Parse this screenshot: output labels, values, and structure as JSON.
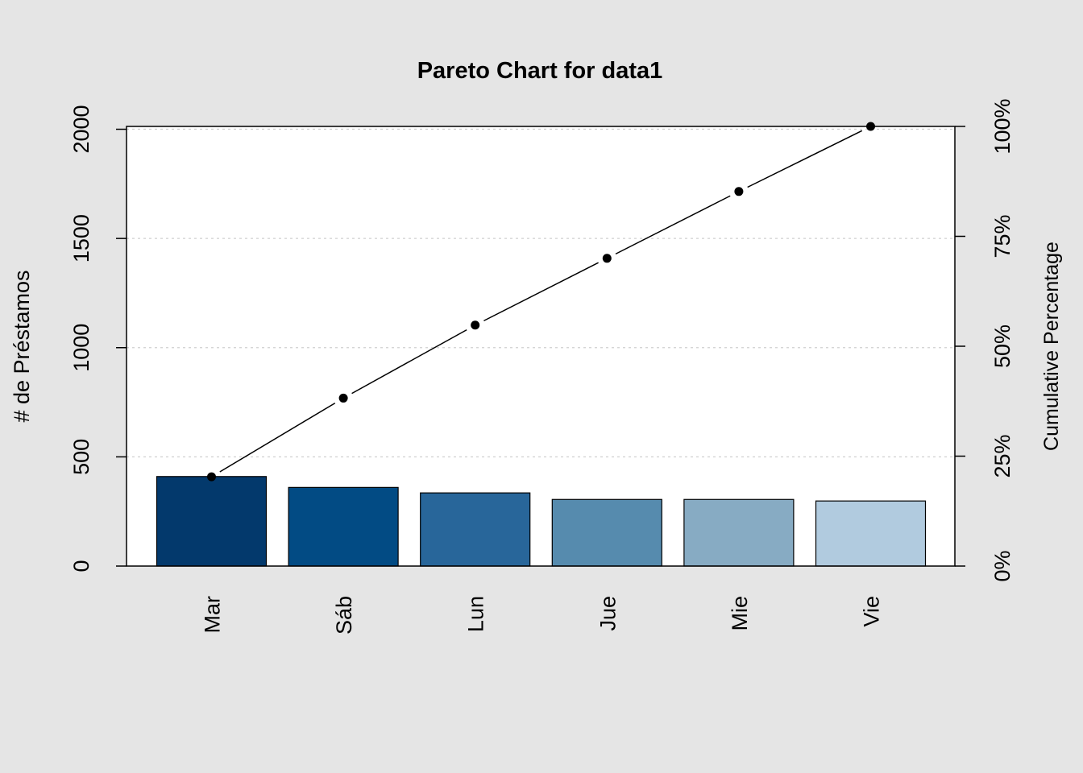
{
  "chart_data": {
    "type": "bar",
    "title": "Pareto Chart for data1",
    "ylabel": "# de Préstamos",
    "y2label": "Cumulative Percentage",
    "categories": [
      "Mar",
      "Sáb",
      "Lun",
      "Jue",
      "Mie",
      "Vie"
    ],
    "values": [
      410,
      360,
      335,
      305,
      305,
      298
    ],
    "cumulative_percent": [
      20.3,
      38.2,
      54.8,
      70.0,
      85.2,
      100.0
    ],
    "ylim": [
      0,
      2013
    ],
    "y_ticks": [
      0,
      500,
      1000,
      1500,
      2000
    ],
    "y2_ticks": [
      "0%",
      "25%",
      "50%",
      "75%",
      "100%"
    ],
    "bar_colors": [
      "#03396c",
      "#024b84",
      "#28669a",
      "#568bae",
      "#87abc3",
      "#b1cbdf"
    ],
    "grid": "horizontal dotted",
    "colors": {
      "background": "#e5e5e5",
      "plot_background": "#ffffff",
      "line": "#000000"
    }
  }
}
